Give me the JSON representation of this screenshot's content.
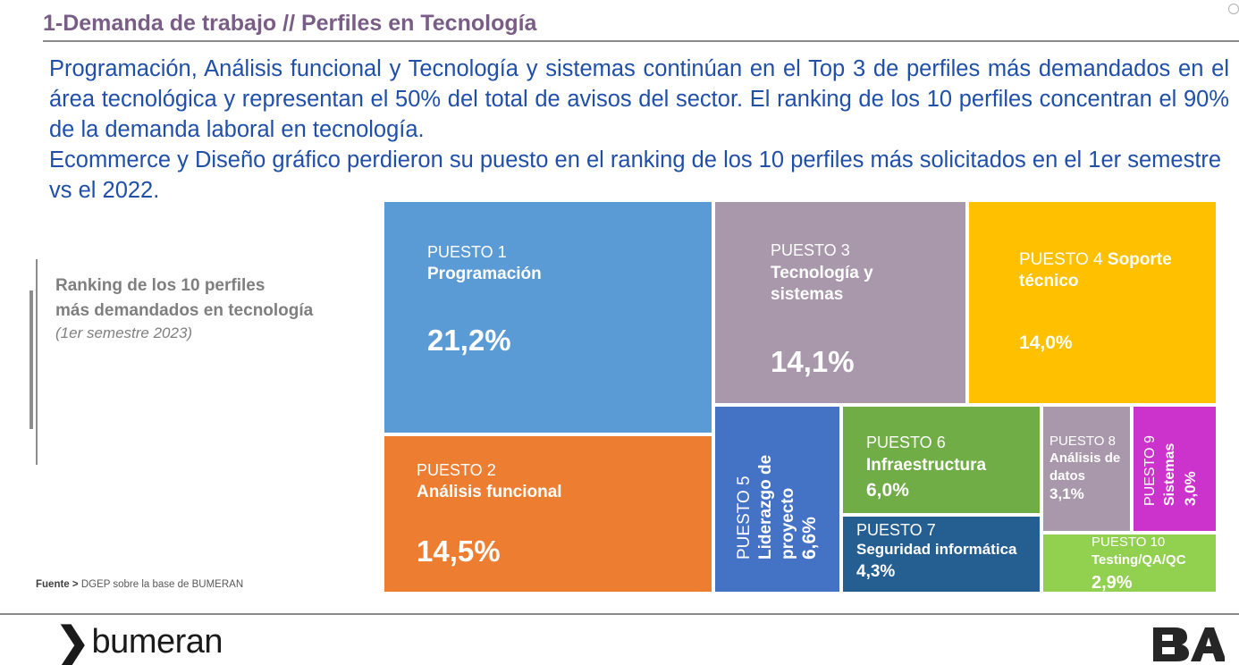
{
  "header": {
    "title": "1-Demanda de trabajo // Perfiles en Tecnología"
  },
  "intro": {
    "paragraph1": "Programación, Análisis funcional y Tecnología y sistemas continúan en el Top 3 de perfiles más demandados en el área tecnológica y representan el 50% del total de avisos del sector. El ranking de los 10 perfiles concentran el 90% de la demanda laboral en tecnología.",
    "paragraph2": "Ecommerce y Diseño gráfico perdieron su puesto en el ranking de los 10 perfiles más solicitados en el 1er semestre vs el 2022."
  },
  "side_panel": {
    "title_line1": "Ranking de los 10  perfiles",
    "title_line2": "más demandados en tecnología",
    "subtitle": "(1er semestre 2023)"
  },
  "source": {
    "label": "Fuente >",
    "text": "DGEP sobre la base de BUMERAN"
  },
  "logos": {
    "left_chevron": "❯",
    "left_word": "bumeran",
    "right": "BA"
  },
  "chart_data": {
    "type": "treemap",
    "title": "Ranking de los 10 perfiles más demandados en tecnología",
    "subtitle": "(1er semestre 2023)",
    "unit": "%",
    "items": [
      {
        "rank_label": "PUESTO 1",
        "name": "Programación",
        "value": 21.2,
        "value_label": "21,2%",
        "color": "#5b9bd5"
      },
      {
        "rank_label": "PUESTO 2",
        "name": "Análisis funcional",
        "value": 14.5,
        "value_label": "14,5%",
        "color": "#ed7d31"
      },
      {
        "rank_label": "PUESTO 3",
        "name": "Tecnología y sistemas",
        "value": 14.1,
        "value_label": "14,1%",
        "color": "#a997ab"
      },
      {
        "rank_label": "PUESTO 4",
        "name": "Soporte técnico",
        "value": 14.0,
        "value_label": "14,0%",
        "color": "#ffc000"
      },
      {
        "rank_label": "PUESTO 5",
        "name": "Liderazgo de proyecto",
        "value": 6.6,
        "value_label": "6,6%",
        "color": "#4472c4"
      },
      {
        "rank_label": "PUESTO 6",
        "name": "Infraestructura",
        "value": 6.0,
        "value_label": "6,0%",
        "color": "#70ad47"
      },
      {
        "rank_label": "PUESTO 7",
        "name": "Seguridad informática",
        "value": 4.3,
        "value_label": "4,3%",
        "color": "#255e91"
      },
      {
        "rank_label": "PUESTO 8",
        "name": "Análisis de datos",
        "value": 3.1,
        "value_label": "3,1%",
        "color": "#a997ab"
      },
      {
        "rank_label": "PUESTO 9",
        "name": "Sistemas",
        "value": 3.0,
        "value_label": "3,0%",
        "color": "#cc33cc"
      },
      {
        "rank_label": "PUESTO 10",
        "name": "Testing/QA/QC",
        "value": 2.9,
        "value_label": "2,9%",
        "color": "#92d050"
      }
    ]
  }
}
